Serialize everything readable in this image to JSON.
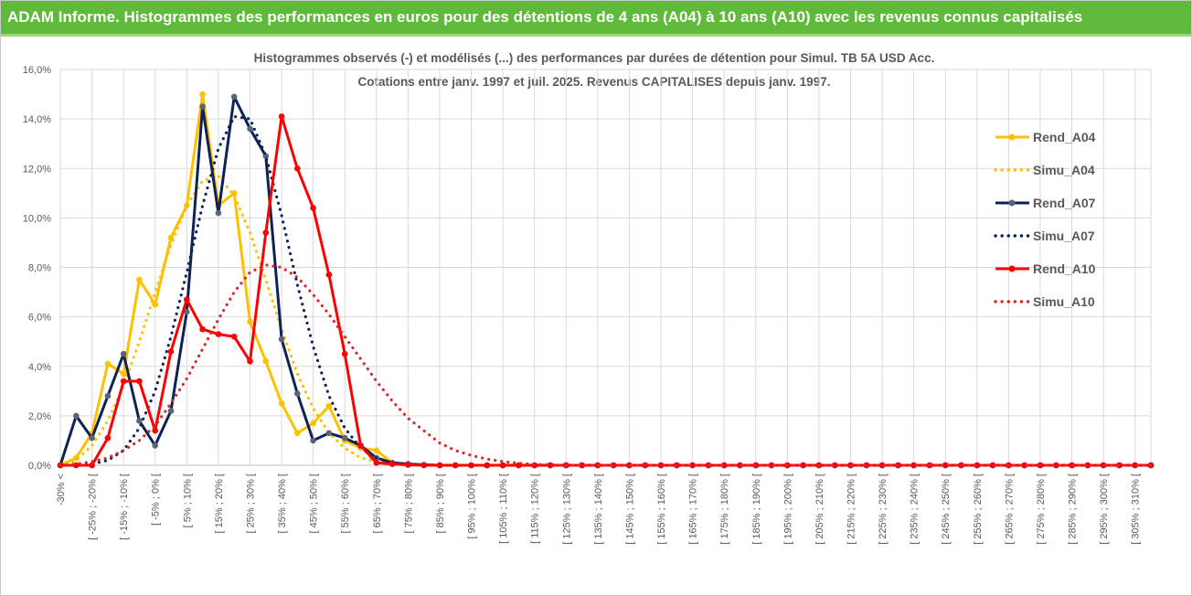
{
  "header": {
    "title": "ADAM Informe. Histogrammes des performances en euros pour des détentions de 4 ans (A04) à 10 ans (A10) avec les revenus connus capitalisés"
  },
  "chart_data": {
    "type": "line",
    "title": "Histogrammes observés (-) et modélisés (...) des performances par durées de détention pour Simul. TB 5A USD Acc.",
    "subtitle": "Cotations entre janv. 1997 et juil. 2025. Revenus CAPITALISES depuis janv. 1997.",
    "ylim": [
      0,
      16
    ],
    "yticks": [
      "0,0%",
      "2,0%",
      "4,0%",
      "6,0%",
      "8,0%",
      "10,0%",
      "12,0%",
      "14,0%",
      "16,0%"
    ],
    "x_labels": [
      "-30% <",
      "[ -25% ; -20% [",
      "[ -15% ; -10% [",
      "[ -5% ; 0% [",
      "[ 5% ; 10% [",
      "[ 15% ; 20% [",
      "[ 25% ; 30% [",
      "[ 35% ; 40% [",
      "[ 45% ; 50% [",
      "[ 55% ; 60% [",
      "[ 65% ; 70% [",
      "[ 75% ; 80% [",
      "[ 85% ; 90% [",
      "[ 95% ; 100% [",
      "[ 105% ; 110% [",
      "[ 115% ; 120% [",
      "[ 125% ; 130% [",
      "[ 135% ; 140% [",
      "[ 145% ; 150% [",
      "[ 155% ; 160% [",
      "[ 165% ; 170% [",
      "[ 175% ; 180% [",
      "[ 185% ; 190% [",
      "[ 195% ; 200% [",
      "[ 205% ; 210% [",
      "[ 215% ; 220% [",
      "[ 225% ; 230% [",
      "[ 235% ; 240% [",
      "[ 245% ; 250% [",
      "[ 255% ; 260% [",
      "[ 265% ; 270% [",
      "[ 275% ; 280% [",
      "[ 285% ; 290% [",
      "[ 295% ; 300% [",
      "[ 305% ; 310% ["
    ],
    "n_points": 70,
    "legend_position": "right",
    "series": [
      {
        "name": "Rend_A04",
        "style": "solid",
        "color": "#ffc000",
        "values": [
          0,
          0.3,
          1.3,
          4.1,
          3.7,
          7.5,
          6.5,
          9.2,
          10.5,
          15.0,
          10.5,
          11.0,
          5.8,
          4.2,
          2.5,
          1.3,
          1.7,
          2.4,
          1.0,
          0.7,
          0.6,
          0.1,
          0.05,
          0.02,
          0,
          0,
          0,
          0,
          0,
          0,
          0,
          0,
          0,
          0,
          0,
          0,
          0,
          0,
          0,
          0,
          0,
          0,
          0,
          0,
          0,
          0,
          0,
          0,
          0,
          0,
          0,
          0,
          0,
          0,
          0,
          0,
          0,
          0,
          0,
          0,
          0,
          0,
          0,
          0,
          0,
          0,
          0,
          0,
          0,
          0
        ]
      },
      {
        "name": "Simu_A04",
        "style": "dotted",
        "color": "#ffc000",
        "values": [
          0,
          0.2,
          0.8,
          1.8,
          3.2,
          5.0,
          7.0,
          8.9,
          10.5,
          11.5,
          11.7,
          10.9,
          9.4,
          7.5,
          5.5,
          3.7,
          2.3,
          1.3,
          0.7,
          0.3,
          0.15,
          0.06,
          0.02,
          0,
          0,
          0,
          0,
          0,
          0,
          0,
          0,
          0,
          0,
          0,
          0,
          0,
          0,
          0,
          0,
          0,
          0,
          0,
          0,
          0,
          0,
          0,
          0,
          0,
          0,
          0,
          0,
          0,
          0,
          0,
          0,
          0,
          0,
          0,
          0,
          0,
          0,
          0,
          0,
          0,
          0,
          0,
          0,
          0,
          0,
          0
        ]
      },
      {
        "name": "Rend_A07",
        "style": "solid",
        "color": "#0d2356",
        "values": [
          0,
          2.0,
          1.1,
          2.8,
          4.5,
          1.8,
          0.8,
          2.2,
          6.2,
          14.5,
          10.2,
          14.9,
          13.6,
          12.5,
          5.1,
          2.9,
          1.0,
          1.3,
          1.1,
          0.8,
          0.3,
          0.1,
          0.05,
          0.02,
          0,
          0,
          0,
          0,
          0,
          0,
          0,
          0,
          0,
          0,
          0,
          0,
          0,
          0,
          0,
          0,
          0,
          0,
          0,
          0,
          0,
          0,
          0,
          0,
          0,
          0,
          0,
          0,
          0,
          0,
          0,
          0,
          0,
          0,
          0,
          0,
          0,
          0,
          0,
          0,
          0,
          0,
          0,
          0,
          0,
          0
        ]
      },
      {
        "name": "Simu_A07",
        "style": "dotted",
        "color": "#0d2356",
        "values": [
          0,
          0,
          0.05,
          0.2,
          0.6,
          1.5,
          3.0,
          5.2,
          7.8,
          10.5,
          12.8,
          14.1,
          14.0,
          12.5,
          10.1,
          7.3,
          4.8,
          2.8,
          1.5,
          0.7,
          0.3,
          0.1,
          0.04,
          0.01,
          0,
          0,
          0,
          0,
          0,
          0,
          0,
          0,
          0,
          0,
          0,
          0,
          0,
          0,
          0,
          0,
          0,
          0,
          0,
          0,
          0,
          0,
          0,
          0,
          0,
          0,
          0,
          0,
          0,
          0,
          0,
          0,
          0,
          0,
          0,
          0,
          0,
          0,
          0,
          0,
          0,
          0,
          0,
          0,
          0,
          0
        ]
      },
      {
        "name": "Rend_A10",
        "style": "solid",
        "color": "#ff0000",
        "values": [
          0,
          0,
          0,
          1.1,
          3.4,
          3.4,
          1.4,
          4.6,
          6.7,
          5.5,
          5.3,
          5.2,
          4.2,
          9.4,
          14.1,
          12.0,
          10.4,
          7.7,
          4.5,
          0.8,
          0.1,
          0.05,
          0.02,
          0,
          0,
          0,
          0,
          0,
          0,
          0,
          0,
          0,
          0,
          0,
          0,
          0,
          0,
          0,
          0,
          0,
          0,
          0,
          0,
          0,
          0,
          0,
          0,
          0,
          0,
          0,
          0,
          0,
          0,
          0,
          0,
          0,
          0,
          0,
          0,
          0,
          0,
          0,
          0,
          0,
          0,
          0,
          0,
          0,
          0,
          0
        ]
      },
      {
        "name": "Simu_A10",
        "style": "dotted",
        "color": "#d92b2b",
        "values": [
          0,
          0.05,
          0.15,
          0.3,
          0.6,
          1.0,
          1.6,
          2.5,
          3.5,
          4.7,
          5.9,
          7.0,
          7.8,
          8.1,
          8.0,
          7.6,
          6.9,
          6.1,
          5.2,
          4.3,
          3.4,
          2.6,
          1.9,
          1.4,
          0.9,
          0.6,
          0.4,
          0.25,
          0.15,
          0.08,
          0.04,
          0.02,
          0,
          0,
          0,
          0,
          0,
          0,
          0,
          0,
          0,
          0,
          0,
          0,
          0,
          0,
          0,
          0,
          0,
          0,
          0,
          0,
          0,
          0,
          0,
          0,
          0,
          0,
          0,
          0,
          0,
          0,
          0,
          0,
          0,
          0,
          0,
          0,
          0,
          0
        ]
      }
    ]
  }
}
